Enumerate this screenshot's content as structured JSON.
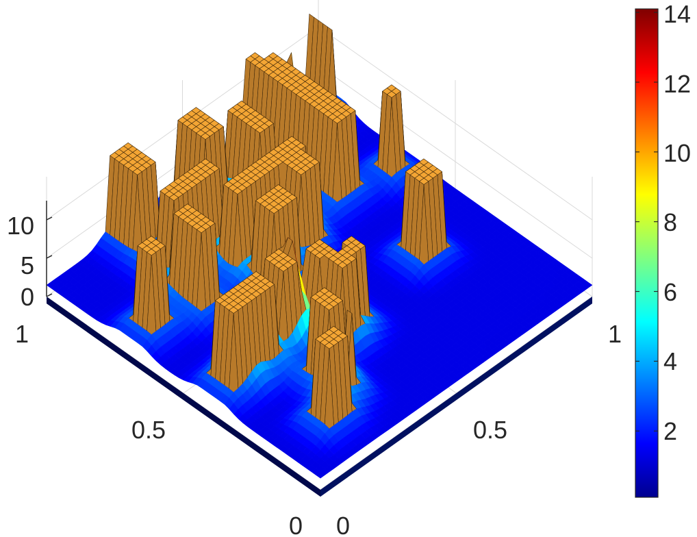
{
  "chart_data": {
    "type": "surface",
    "title": "",
    "xlabel": "",
    "ylabel": "",
    "zlabel": "",
    "x_ticks": [
      "0",
      "0.5",
      "1"
    ],
    "y_ticks": [
      "0",
      "0.5",
      "1"
    ],
    "z_ticks": [
      "0",
      "5",
      "10"
    ],
    "xlim": [
      0,
      1
    ],
    "ylim": [
      0,
      1
    ],
    "zlim": [
      0,
      12.5
    ],
    "grid": true,
    "colormap": "jet",
    "colorbar": {
      "location": "right",
      "ticks": [
        "2",
        "4",
        "6",
        "8",
        "10",
        "12",
        "14"
      ],
      "tick_values": [
        2,
        4,
        6,
        8,
        10,
        12,
        14
      ],
      "range": [
        0.1,
        14.1
      ]
    },
    "background_level": 1.5,
    "plateau_height": 12.5,
    "plateau_color": "#f3a534",
    "plateau_edge_color": "#3a2408",
    "plateaus": [
      {
        "id": "p1",
        "rect": [
          0.955,
          0.975,
          0.91,
          1.0
        ]
      },
      {
        "id": "p2",
        "rect": [
          0.72,
          0.8,
          0.66,
          0.98
        ]
      },
      {
        "id": "p3",
        "rect": [
          0.72,
          0.78,
          0.9,
          1.0
        ]
      },
      {
        "id": "p4",
        "rect": [
          0.56,
          0.63,
          0.78,
          0.91
        ]
      },
      {
        "id": "p5",
        "rect": [
          0.53,
          0.6,
          0.6,
          0.72
        ]
      },
      {
        "id": "p6",
        "rect": [
          0.38,
          0.48,
          0.54,
          0.62
        ]
      },
      {
        "id": "p7",
        "rect": [
          0.36,
          0.62,
          0.66,
          0.73
        ]
      },
      {
        "id": "p8",
        "rect": [
          0.44,
          0.53,
          0.86,
          0.98
        ]
      },
      {
        "id": "p9",
        "rect": [
          0.23,
          0.3,
          0.9,
          1.0
        ]
      },
      {
        "id": "p10",
        "rect": [
          0.23,
          0.4,
          0.76,
          0.83
        ]
      },
      {
        "id": "p11",
        "rect": [
          0.19,
          0.26,
          0.62,
          0.74
        ]
      },
      {
        "id": "p12",
        "rect": [
          0.24,
          0.3,
          0.38,
          0.46
        ]
      },
      {
        "id": "p13",
        "rect": [
          0.13,
          0.2,
          0.36,
          0.44
        ]
      },
      {
        "id": "p14",
        "rect": [
          0.34,
          0.4,
          0.34,
          0.4
        ]
      },
      {
        "id": "p15",
        "rect": [
          0.22,
          0.29,
          0.2,
          0.27
        ]
      },
      {
        "id": "p16",
        "rect": [
          0.26,
          0.28,
          0.14,
          0.18
        ]
      },
      {
        "id": "p17",
        "rect": [
          0.36,
          0.42,
          0.28,
          0.34
        ]
      },
      {
        "id": "p18",
        "rect": [
          0.42,
          0.48,
          0.3,
          0.36
        ]
      },
      {
        "id": "p19",
        "rect": [
          0.12,
          0.2,
          0.1,
          0.16
        ]
      },
      {
        "id": "p20",
        "rect": [
          0.04,
          0.1,
          0.66,
          0.73
        ]
      },
      {
        "id": "p21",
        "rect": [
          0.04,
          0.12,
          0.36,
          0.44
        ]
      },
      {
        "id": "p22",
        "rect": [
          0.72,
          0.8,
          0.35,
          0.42
        ]
      },
      {
        "id": "p23",
        "rect": [
          0.9,
          0.94,
          0.62,
          0.68
        ]
      }
    ],
    "peaks": [
      {
        "id": "k1",
        "x": 0.3,
        "y": 0.43,
        "height": 14.0,
        "width": 0.032
      },
      {
        "id": "k2",
        "x": 0.805,
        "y": 0.92,
        "height": 13.4,
        "width": 0.018
      },
      {
        "id": "k3",
        "x": 0.76,
        "y": 0.86,
        "height": 7.5,
        "width": 0.014
      },
      {
        "id": "k4",
        "x": 0.54,
        "y": 0.75,
        "height": 6.0,
        "width": 0.012
      },
      {
        "id": "k5",
        "x": 0.58,
        "y": 0.86,
        "height": 5.5,
        "width": 0.015
      },
      {
        "id": "k6",
        "x": 0.45,
        "y": 0.44,
        "height": 4.8,
        "width": 0.04
      }
    ]
  }
}
